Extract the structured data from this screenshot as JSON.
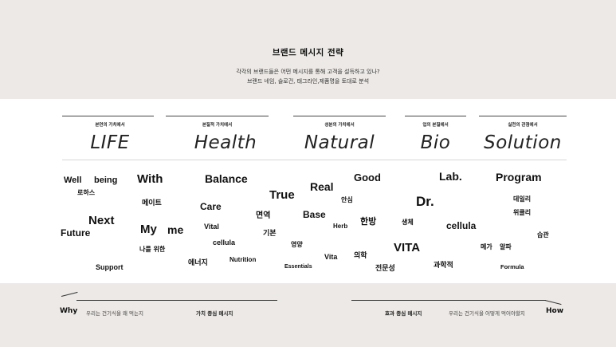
{
  "header": {
    "title": "브랜드 메시지 전략",
    "subtitle_1": "각각의 브랜드들은 어떤 메시지를 통해 고객을 설득하고 있나?",
    "subtitle_2": "브랜드 네임, 슬로건, 태그라인,제품명을 토대로 분석"
  },
  "columns": [
    {
      "caption": "본연의 가치에서",
      "category": "LIFE"
    },
    {
      "caption": "본질적 가치에서",
      "category": "Health"
    },
    {
      "caption": "성분의 가치에서",
      "category": "Natural"
    },
    {
      "caption": "업의 본질에서",
      "category": "Bio"
    },
    {
      "caption": "실천의 관점에서",
      "category": "Solution"
    }
  ],
  "words": {
    "well": "Well",
    "being": "being",
    "lohas": "로하스",
    "next": "Next",
    "future": "Future",
    "support": "Support",
    "with": "With",
    "mate": "메이트",
    "my": "My",
    "me": "me",
    "for_me": "나를 위한",
    "balance": "Balance",
    "care": "Care",
    "vital": "Vital",
    "cellula_1": "cellula",
    "energy": "에너지",
    "nutrition": "Nutrition",
    "true": "True",
    "immunity": "면역",
    "basic": "기본",
    "real": "Real",
    "relief": "안심",
    "base": "Base",
    "nutrient": "영양",
    "essentials": "Essentials",
    "vita_small": "Vita",
    "herb": "Herb",
    "good": "Good",
    "hanbang": "한방",
    "medicine": "의학",
    "expertise": "전문성",
    "vita": "VITA",
    "living_body": "생체",
    "lab": "Lab.",
    "dr": "Dr.",
    "cellula_2": "cellula",
    "science": "과학적",
    "program": "Program",
    "daily": "데일리",
    "weekly": "위클리",
    "habit": "습관",
    "mega": "메가",
    "alpha": "알파",
    "formula": "Formula"
  },
  "footer": {
    "why": "Why",
    "why_desc": "우리는 건기식을 왜 먹는지",
    "value_message": "가치 중심 메시지",
    "effect_message": "효과 중심 메시지",
    "how_desc": "우리는 건기식을 어떻게 먹어야할지",
    "how": "How"
  }
}
